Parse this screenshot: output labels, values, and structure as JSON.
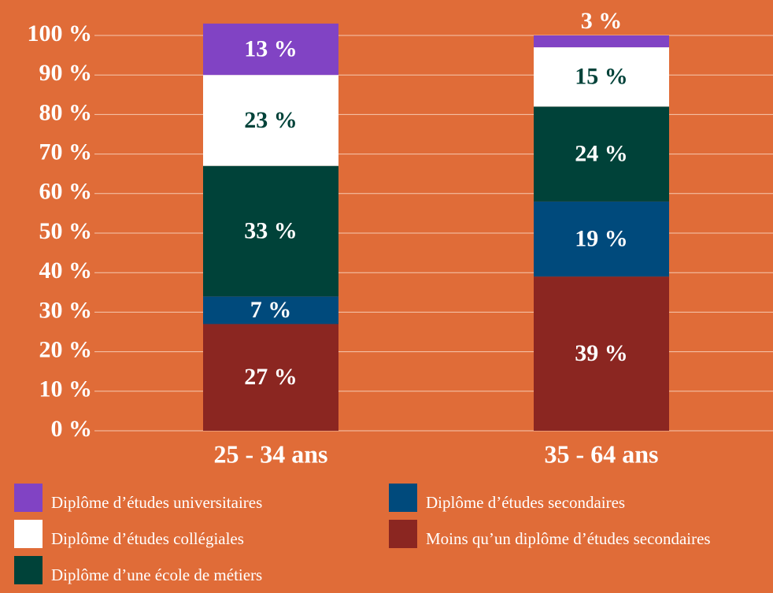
{
  "chart_data": {
    "type": "stacked_bar",
    "categories": [
      "25 - 34 ans",
      "35 - 64 ans"
    ],
    "series": [
      {
        "name": "Diplôme d’études universitaires",
        "color": "#8143c4",
        "values": [
          13,
          3
        ],
        "value_labels": [
          "13 %",
          "3 %"
        ]
      },
      {
        "name": "Diplôme d’études collégiales",
        "color": "#ffffff",
        "values": [
          23,
          15
        ],
        "value_labels": [
          "23 %",
          "15 %"
        ]
      },
      {
        "name": "Diplôme d’une école de métiers",
        "color": "#004239",
        "values": [
          33,
          24
        ],
        "value_labels": [
          "33 %",
          "24 %"
        ]
      },
      {
        "name": "Diplôme d’études secondaires",
        "color": "#004a7c",
        "values": [
          7,
          19
        ],
        "value_labels": [
          "7 %",
          "19 %"
        ]
      },
      {
        "name": "Moins qu’un diplôme d’études secondaires",
        "color": "#8b2621",
        "values": [
          27,
          39
        ],
        "value_labels": [
          "27 %",
          "39 %"
        ]
      }
    ],
    "ylim": [
      0,
      100
    ],
    "yticks": [
      {
        "value": 0,
        "label": "0 %"
      },
      {
        "value": 10,
        "label": "10 %"
      },
      {
        "value": 20,
        "label": "20 %"
      },
      {
        "value": 30,
        "label": "30 %"
      },
      {
        "value": 40,
        "label": "40 %"
      },
      {
        "value": 50,
        "label": "50 %"
      },
      {
        "value": 60,
        "label": "60 %"
      },
      {
        "value": 70,
        "label": "70 %"
      },
      {
        "value": 80,
        "label": "80 %"
      },
      {
        "value": 90,
        "label": "90 %"
      },
      {
        "value": 100,
        "label": "100 %"
      }
    ],
    "grid": true
  }
}
